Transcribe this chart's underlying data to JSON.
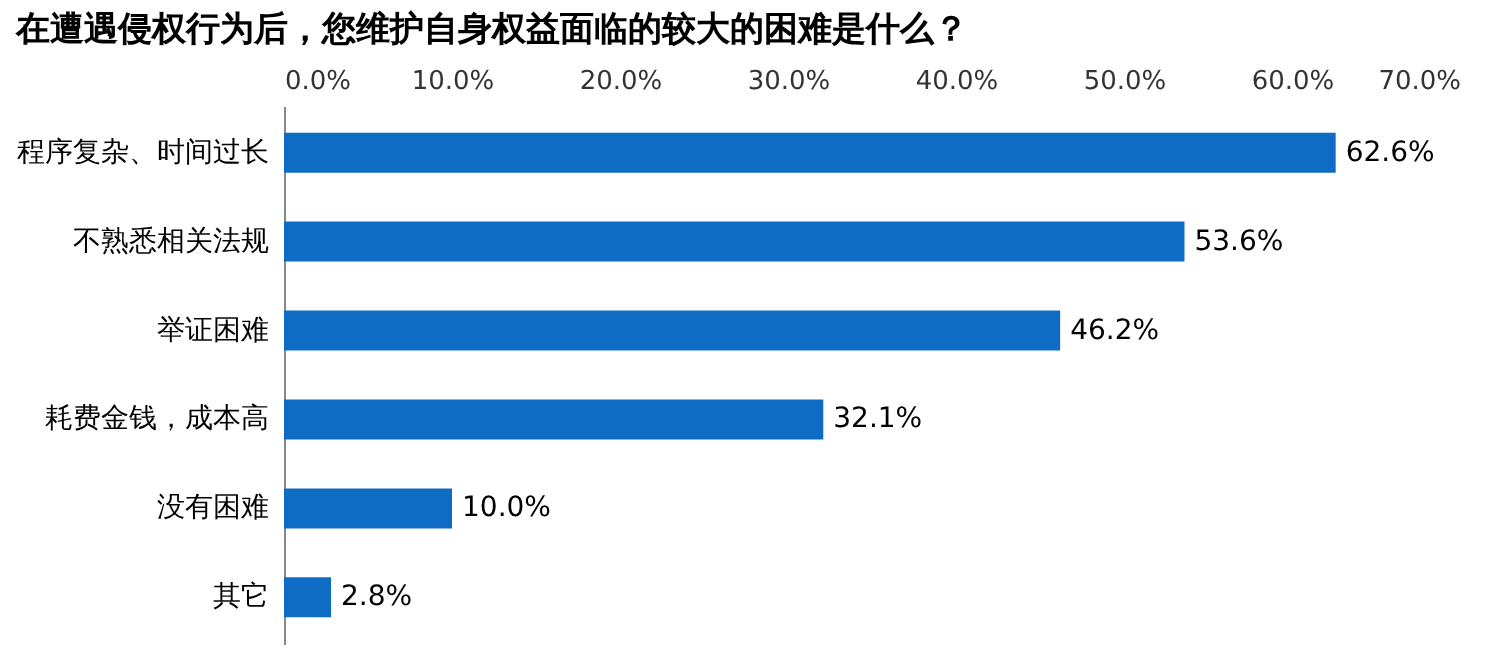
{
  "chart_data": {
    "type": "bar",
    "orientation": "horizontal",
    "title": "在遭遇侵权行为后，您维护自身权益面临的较大的困难是什么？",
    "categories": [
      "程序复杂、时间过长",
      "不熟悉相关法规",
      "举证困难",
      "耗费金钱，成本高",
      "没有困难",
      "其它"
    ],
    "values": [
      62.6,
      53.6,
      46.2,
      32.1,
      10.0,
      2.8
    ],
    "value_labels": [
      "62.6%",
      "53.6%",
      "46.2%",
      "32.1%",
      "10.0%",
      "2.8%"
    ],
    "color": "#0f6cc4",
    "xlim": [
      0,
      70
    ],
    "xticks": [
      {
        "value": 0,
        "label": "0.0%"
      },
      {
        "value": 10,
        "label": "10.0%"
      },
      {
        "value": 20,
        "label": "20.0%"
      },
      {
        "value": 30,
        "label": "30.0%"
      },
      {
        "value": 40,
        "label": "40.0%"
      },
      {
        "value": 50,
        "label": "50.0%"
      },
      {
        "value": 60,
        "label": "60.0%"
      },
      {
        "value": 70,
        "label": "70.0%"
      }
    ],
    "grid": false
  }
}
